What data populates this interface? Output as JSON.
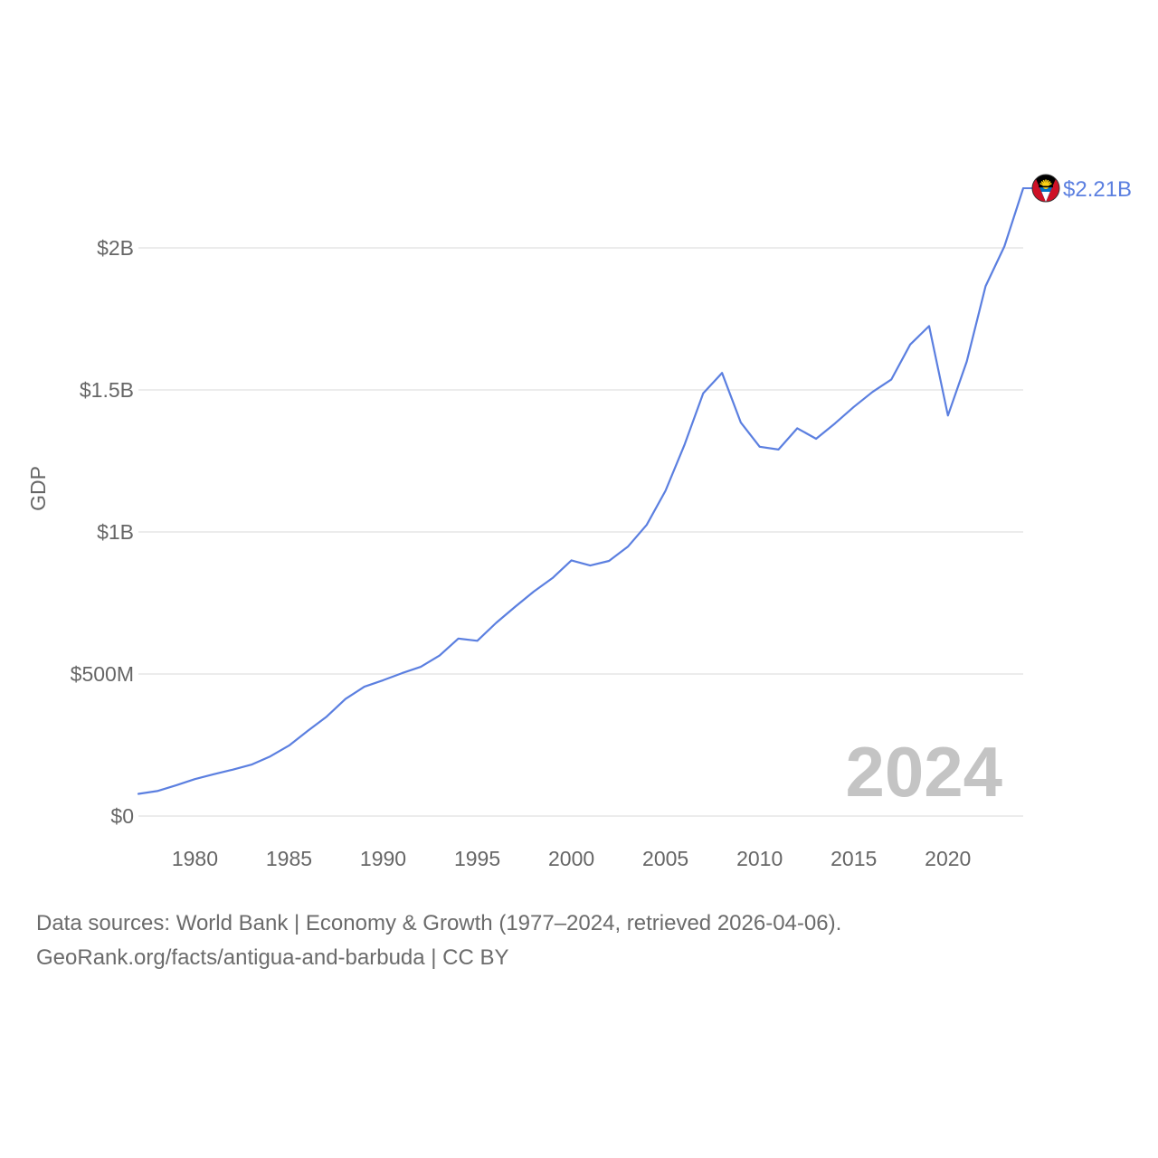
{
  "chart_data": {
    "type": "line",
    "ylabel": "GDP",
    "ylim": [
      0,
      2300000000
    ],
    "xlim": [
      1977,
      2024
    ],
    "yticks": [
      {
        "value": 0,
        "label": "$0"
      },
      {
        "value": 500000000,
        "label": "$500M"
      },
      {
        "value": 1000000000,
        "label": "$1B"
      },
      {
        "value": 1500000000,
        "label": "$1.5B"
      },
      {
        "value": 2000000000,
        "label": "$2B"
      }
    ],
    "xticks": [
      1980,
      1985,
      1990,
      1995,
      2000,
      2005,
      2010,
      2015,
      2020
    ],
    "series": [
      {
        "name": "Antigua and Barbuda",
        "color": "#5b7fe0",
        "end_label": "$2.21B",
        "x": [
          1977,
          1978,
          1979,
          1980,
          1981,
          1982,
          1983,
          1984,
          1985,
          1986,
          1987,
          1988,
          1989,
          1990,
          1991,
          1992,
          1993,
          1994,
          1995,
          1996,
          1997,
          1998,
          1999,
          2000,
          2001,
          2002,
          2003,
          2004,
          2005,
          2006,
          2007,
          2008,
          2009,
          2010,
          2011,
          2012,
          2013,
          2014,
          2015,
          2016,
          2017,
          2018,
          2019,
          2020,
          2021,
          2022,
          2023,
          2024
        ],
        "values": [
          78000000,
          88000000,
          108000000,
          130000000,
          147000000,
          163000000,
          181000000,
          210000000,
          248000000,
          300000000,
          350000000,
          412000000,
          455000000,
          478000000,
          503000000,
          525000000,
          565000000,
          625000000,
          617000000,
          680000000,
          736000000,
          790000000,
          838000000,
          900000000,
          882000000,
          898000000,
          948000000,
          1025000000,
          1145000000,
          1305000000,
          1488000000,
          1560000000,
          1385000000,
          1300000000,
          1290000000,
          1365000000,
          1328000000,
          1382000000,
          1440000000,
          1493000000,
          1537000000,
          1660000000,
          1725000000,
          1410000000,
          1600000000,
          1865000000,
          2005000000,
          2210000000
        ]
      }
    ],
    "current_year_label": "2024"
  },
  "footer": {
    "line1": "Data sources: World Bank | Economy & Growth (1977–2024, retrieved 2026-04-06).",
    "line2": "GeoRank.org/facts/antigua-and-barbuda | CC BY"
  },
  "colors": {
    "line": "#5b7fe0",
    "grid": "#e6e6e6",
    "axis_text": "#666666",
    "year_watermark": "#c4c4c4"
  }
}
